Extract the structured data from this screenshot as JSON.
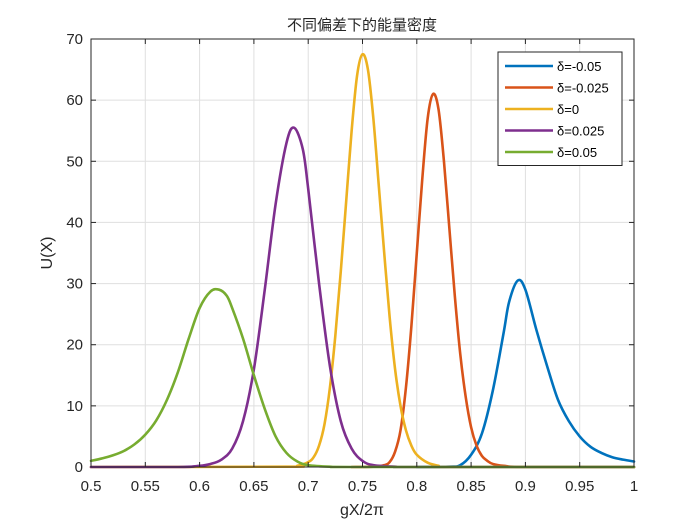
{
  "chart_data": {
    "type": "line",
    "title": "不同偏差下的能量密度",
    "xlabel": "gX/2π",
    "ylabel": "U(X)",
    "xlim": [
      0.5,
      1.0
    ],
    "ylim": [
      0,
      70
    ],
    "x_ticks": [
      0.5,
      0.55,
      0.6,
      0.65,
      0.7,
      0.75,
      0.8,
      0.85,
      0.9,
      0.95,
      1.0
    ],
    "x_tick_labels": [
      "0.5",
      "0.55",
      "0.6",
      "0.65",
      "0.7",
      "0.75",
      "0.8",
      "0.85",
      "0.9",
      "0.95",
      "1"
    ],
    "y_ticks": [
      0,
      10,
      20,
      30,
      40,
      50,
      60,
      70
    ],
    "y_tick_labels": [
      "0",
      "10",
      "20",
      "30",
      "40",
      "50",
      "60",
      "70"
    ],
    "grid": true,
    "legend_position": "top-right",
    "series": [
      {
        "name": "δ=-0.05",
        "color": "#0072BD",
        "points": [
          [
            0.8,
            0.0
          ],
          [
            0.83,
            0.05
          ],
          [
            0.84,
            0.3
          ],
          [
            0.85,
            2.0
          ],
          [
            0.86,
            5.5
          ],
          [
            0.87,
            12.5
          ],
          [
            0.88,
            22.0
          ],
          [
            0.885,
            27.0
          ],
          [
            0.893,
            30.5
          ],
          [
            0.9,
            29.0
          ],
          [
            0.91,
            22.5
          ],
          [
            0.92,
            16.5
          ],
          [
            0.93,
            11.0
          ],
          [
            0.94,
            7.5
          ],
          [
            0.95,
            5.0
          ],
          [
            0.96,
            3.3
          ],
          [
            0.97,
            2.3
          ],
          [
            0.98,
            1.6
          ],
          [
            0.99,
            1.2
          ],
          [
            1.0,
            0.9
          ]
        ]
      },
      {
        "name": "δ=-0.025",
        "color": "#D95319",
        "points": [
          [
            0.74,
            0.0
          ],
          [
            0.76,
            0.05
          ],
          [
            0.77,
            0.3
          ],
          [
            0.775,
            0.8
          ],
          [
            0.78,
            2.5
          ],
          [
            0.785,
            6.0
          ],
          [
            0.79,
            13.0
          ],
          [
            0.795,
            23.0
          ],
          [
            0.8,
            35.0
          ],
          [
            0.805,
            47.0
          ],
          [
            0.81,
            57.0
          ],
          [
            0.815,
            61.0
          ],
          [
            0.82,
            58.5
          ],
          [
            0.825,
            50.0
          ],
          [
            0.83,
            39.0
          ],
          [
            0.835,
            28.0
          ],
          [
            0.84,
            18.5
          ],
          [
            0.845,
            11.5
          ],
          [
            0.85,
            6.5
          ],
          [
            0.855,
            3.5
          ],
          [
            0.86,
            1.8
          ],
          [
            0.865,
            1.0
          ],
          [
            0.87,
            0.5
          ],
          [
            0.88,
            0.2
          ],
          [
            0.9,
            0.0
          ],
          [
            1.0,
            0.0
          ]
        ]
      },
      {
        "name": "δ=0",
        "color": "#EDB120",
        "points": [
          [
            0.5,
            0.0
          ],
          [
            0.68,
            0.05
          ],
          [
            0.69,
            0.2
          ],
          [
            0.7,
            0.8
          ],
          [
            0.705,
            1.6
          ],
          [
            0.71,
            3.5
          ],
          [
            0.715,
            7.0
          ],
          [
            0.72,
            13.0
          ],
          [
            0.725,
            21.5
          ],
          [
            0.73,
            32.0
          ],
          [
            0.735,
            43.5
          ],
          [
            0.74,
            55.0
          ],
          [
            0.745,
            64.0
          ],
          [
            0.75,
            67.5
          ],
          [
            0.755,
            65.0
          ],
          [
            0.76,
            57.0
          ],
          [
            0.765,
            46.0
          ],
          [
            0.77,
            35.0
          ],
          [
            0.775,
            24.5
          ],
          [
            0.78,
            16.0
          ],
          [
            0.785,
            10.0
          ],
          [
            0.79,
            6.0
          ],
          [
            0.795,
            3.5
          ],
          [
            0.8,
            2.0
          ],
          [
            0.81,
            0.7
          ],
          [
            0.82,
            0.2
          ],
          [
            0.83,
            0.0
          ],
          [
            1.0,
            0.0
          ]
        ]
      },
      {
        "name": "δ=0.025",
        "color": "#7E2F8E",
        "points": [
          [
            0.5,
            0.0
          ],
          [
            0.58,
            0.0
          ],
          [
            0.6,
            0.2
          ],
          [
            0.61,
            0.5
          ],
          [
            0.62,
            1.2
          ],
          [
            0.63,
            3.0
          ],
          [
            0.64,
            7.5
          ],
          [
            0.65,
            16.0
          ],
          [
            0.66,
            29.0
          ],
          [
            0.67,
            43.0
          ],
          [
            0.68,
            53.0
          ],
          [
            0.687,
            55.5
          ],
          [
            0.695,
            52.0
          ],
          [
            0.7,
            45.5
          ],
          [
            0.71,
            30.0
          ],
          [
            0.72,
            16.5
          ],
          [
            0.73,
            7.5
          ],
          [
            0.74,
            3.0
          ],
          [
            0.75,
            1.0
          ],
          [
            0.76,
            0.3
          ],
          [
            0.78,
            0.05
          ],
          [
            0.8,
            0.0
          ],
          [
            1.0,
            0.0
          ]
        ]
      },
      {
        "name": "δ=0.05",
        "color": "#77AC30",
        "points": [
          [
            0.5,
            1.0
          ],
          [
            0.51,
            1.4
          ],
          [
            0.52,
            1.9
          ],
          [
            0.53,
            2.6
          ],
          [
            0.54,
            3.7
          ],
          [
            0.55,
            5.3
          ],
          [
            0.56,
            7.6
          ],
          [
            0.57,
            11.0
          ],
          [
            0.58,
            15.5
          ],
          [
            0.59,
            21.0
          ],
          [
            0.6,
            26.0
          ],
          [
            0.61,
            28.7
          ],
          [
            0.618,
            29.0
          ],
          [
            0.625,
            28.0
          ],
          [
            0.63,
            26.0
          ],
          [
            0.64,
            21.0
          ],
          [
            0.65,
            15.0
          ],
          [
            0.66,
            9.5
          ],
          [
            0.67,
            5.0
          ],
          [
            0.68,
            2.3
          ],
          [
            0.69,
            0.9
          ],
          [
            0.7,
            0.3
          ],
          [
            0.72,
            0.05
          ],
          [
            0.75,
            0.0
          ],
          [
            1.0,
            0.0
          ]
        ]
      }
    ]
  }
}
